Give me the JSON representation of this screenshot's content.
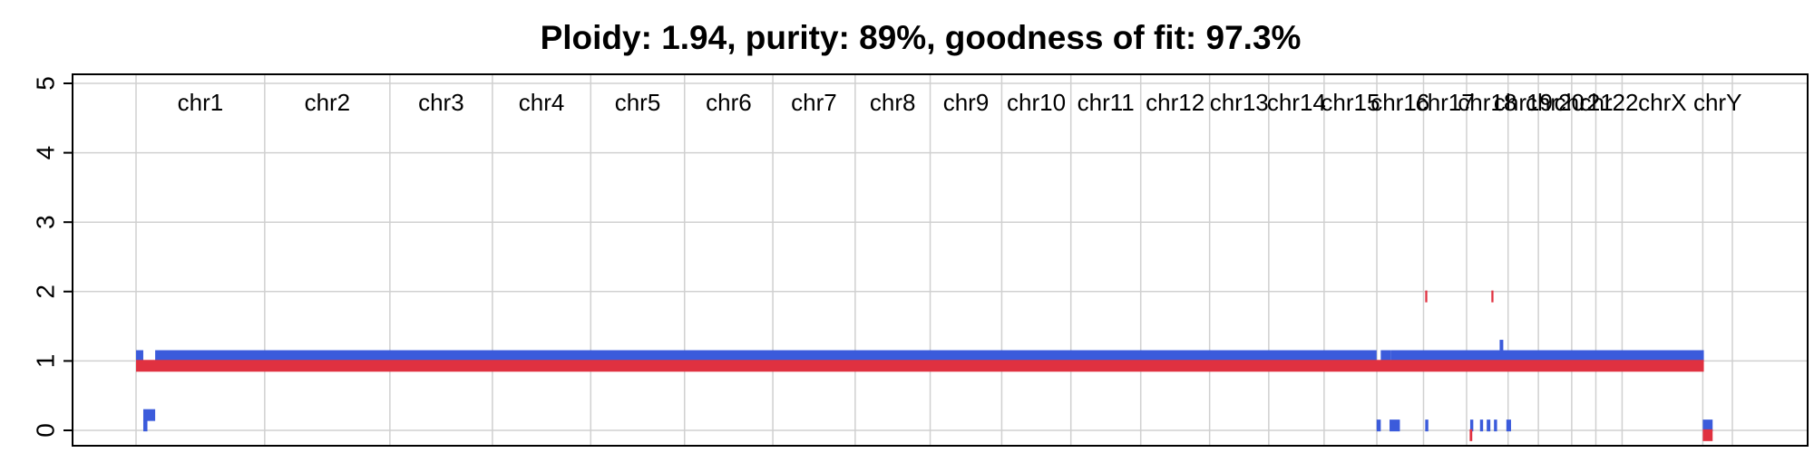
{
  "chart_data": {
    "type": "segment",
    "title": "Ploidy: 1.94, purity: 89%, goodness of fit: 97.3%",
    "xlabel": "",
    "ylabel": "",
    "ylim": [
      0,
      5
    ],
    "yticks": [
      0,
      1,
      2,
      3,
      4,
      5
    ],
    "grid": true,
    "colors": {
      "major": "#3B5BDB",
      "minor": "#E03140",
      "grid": "#d0d0d0",
      "axis": "#000000"
    },
    "chromosomes": [
      {
        "name": "chr1",
        "start": 0.0,
        "end": 248.9
      },
      {
        "name": "chr2",
        "start": 248.9,
        "end": 491.1
      },
      {
        "name": "chr3",
        "start": 491.1,
        "end": 689.4
      },
      {
        "name": "chr4",
        "start": 689.4,
        "end": 879.6
      },
      {
        "name": "chr5",
        "start": 879.6,
        "end": 1061.1
      },
      {
        "name": "chr6",
        "start": 1061.1,
        "end": 1231.9
      },
      {
        "name": "chr7",
        "start": 1231.9,
        "end": 1391.2
      },
      {
        "name": "chr8",
        "start": 1391.2,
        "end": 1536.3
      },
      {
        "name": "chr9",
        "start": 1536.3,
        "end": 1674.7
      },
      {
        "name": "chr10",
        "start": 1674.7,
        "end": 1808.5
      },
      {
        "name": "chr11",
        "start": 1808.5,
        "end": 1943.6
      },
      {
        "name": "chr12",
        "start": 1943.6,
        "end": 2076.9
      },
      {
        "name": "chr13",
        "start": 2076.9,
        "end": 2191.3
      },
      {
        "name": "chr14",
        "start": 2191.3,
        "end": 2298.4
      },
      {
        "name": "chr15",
        "start": 2298.4,
        "end": 2400.4
      },
      {
        "name": "chr16",
        "start": 2400.4,
        "end": 2490.7
      },
      {
        "name": "chr17",
        "start": 2490.7,
        "end": 2574.0
      },
      {
        "name": "chr18",
        "start": 2574.0,
        "end": 2654.3
      },
      {
        "name": "chr19",
        "start": 2654.3,
        "end": 2712.9
      },
      {
        "name": "chr20",
        "start": 2712.9,
        "end": 2777.4
      },
      {
        "name": "chr21",
        "start": 2777.4,
        "end": 2824.1
      },
      {
        "name": "chr22",
        "start": 2824.1,
        "end": 2874.9
      },
      {
        "name": "chrX",
        "start": 2874.9,
        "end": 3031.0
      },
      {
        "name": "chrY",
        "start": 3031.0,
        "end": 3088.2
      }
    ],
    "series": [
      {
        "color": "#3B5BDB",
        "offset": 0.07,
        "segments": [
          [
            0,
            14,
            1
          ],
          [
            14,
            22,
            0
          ],
          [
            14,
            37,
            0.15
          ],
          [
            37,
            2400,
            1
          ],
          [
            2400,
            2408,
            0
          ],
          [
            2408,
            2427,
            1
          ],
          [
            2425,
            2445,
            0
          ],
          [
            2427,
            3033,
            1
          ],
          [
            2494,
            2500,
            0
          ],
          [
            2581,
            2587,
            0
          ],
          [
            2600,
            2606,
            0
          ],
          [
            2613,
            2620,
            0
          ],
          [
            2627,
            2633,
            0
          ],
          [
            2651,
            2660,
            0
          ],
          [
            2638,
            2645,
            1.15
          ],
          [
            3031,
            3050,
            0
          ]
        ]
      },
      {
        "color": "#E03140",
        "offset": -0.07,
        "segments": [
          [
            0,
            3033,
            1
          ],
          [
            2494,
            2498,
            2
          ],
          [
            2622,
            2626,
            2
          ],
          [
            2580,
            2585,
            0
          ],
          [
            3031,
            3050,
            0
          ]
        ]
      }
    ]
  }
}
